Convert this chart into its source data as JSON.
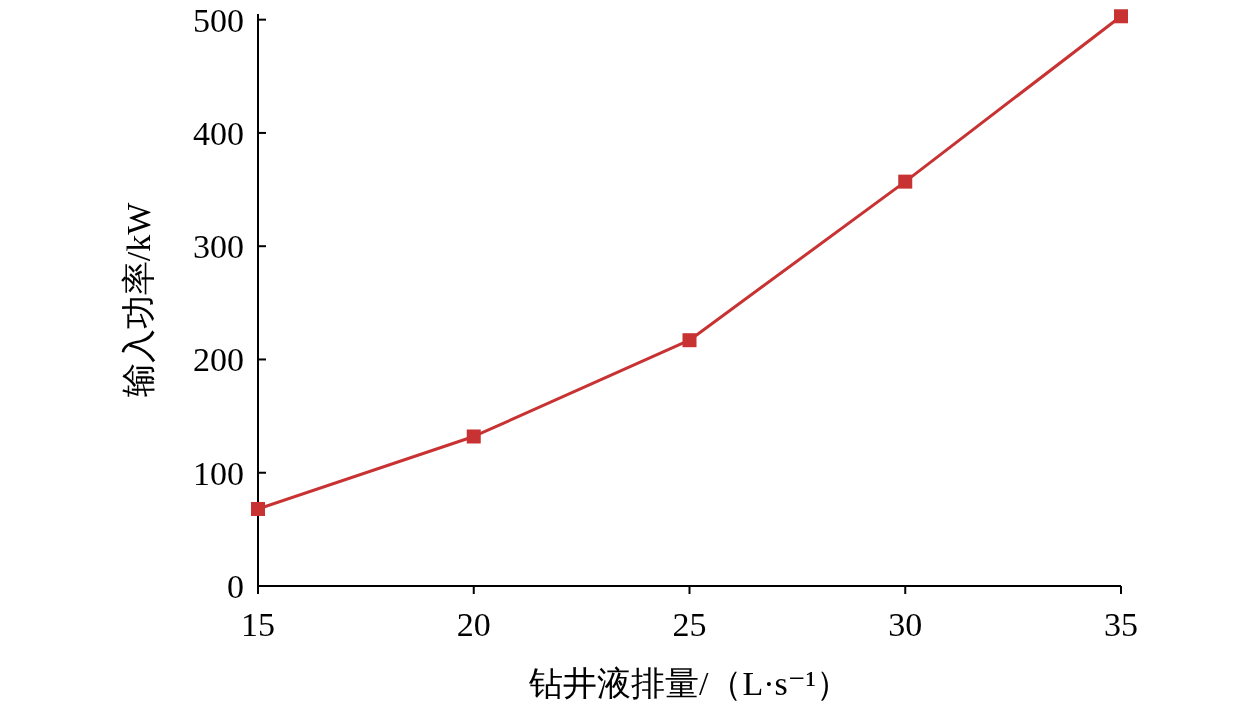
{
  "chart_data": {
    "type": "line",
    "xlabel": "钻井液排量/（L·s⁻¹）",
    "ylabel": "输入功率/kW",
    "x": [
      15,
      20,
      25,
      30,
      35
    ],
    "series": [
      {
        "color": "#c83232",
        "values": [
          68,
          132,
          217,
          357,
          503
        ]
      }
    ],
    "xlim": [
      15,
      35
    ],
    "xticks": [
      15,
      20,
      25,
      30,
      35
    ],
    "ylim": [
      0,
      505
    ],
    "yticks": [
      0,
      100,
      200,
      300,
      400,
      500
    ],
    "grid": false,
    "marker": "square",
    "line_style": "solid"
  }
}
